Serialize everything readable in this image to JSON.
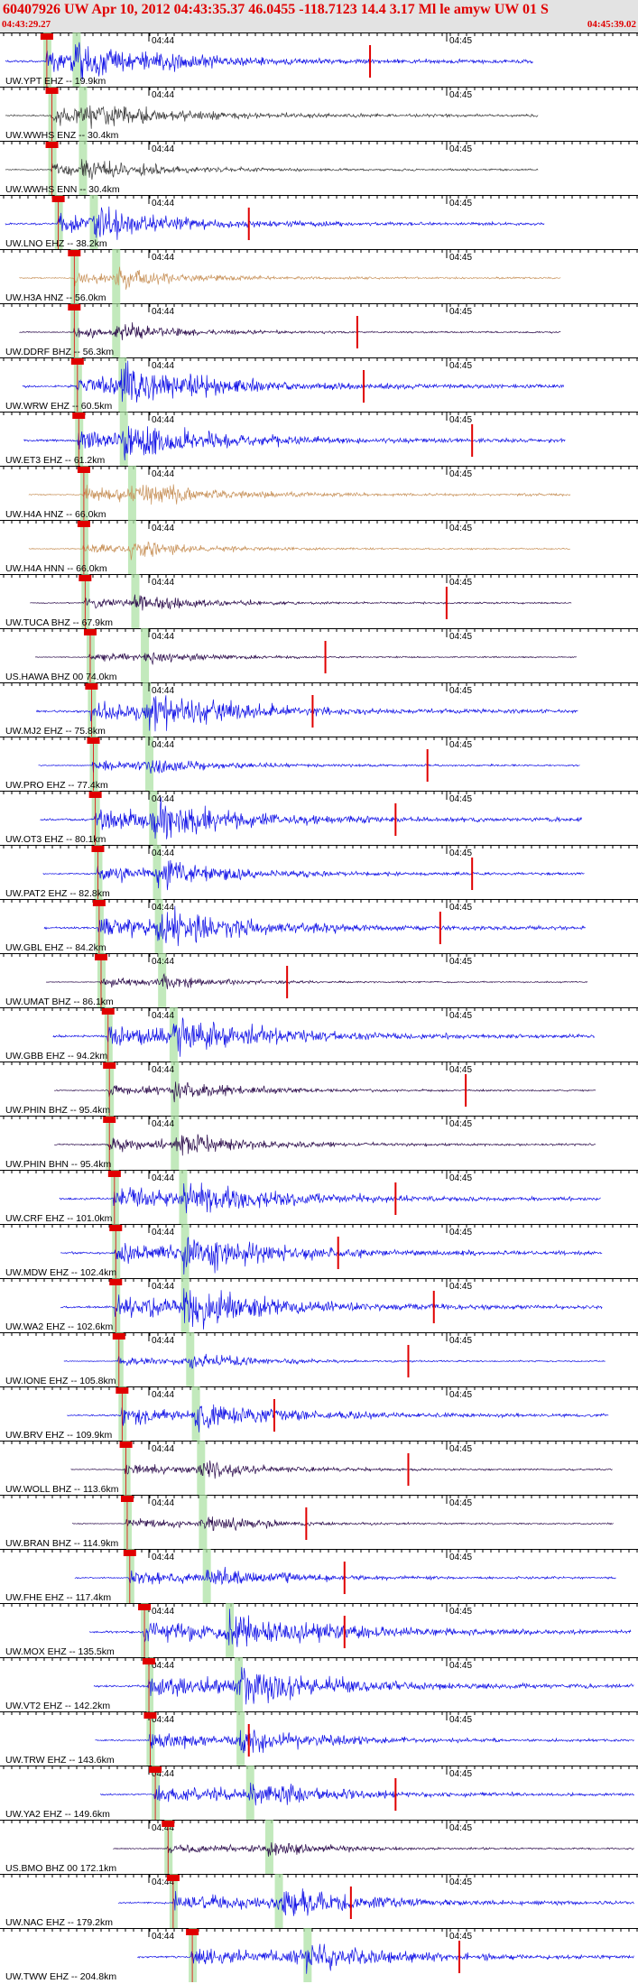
{
  "header": {
    "title": "60407926 UW Apr 10, 2012 04:43:35.37   46.0455 -118.7123 14.4 3.17 Ml le amyw UW 01   S",
    "start_time": "04:43:29.27",
    "end_time": "04:45:39.02"
  },
  "chart_data": {
    "type": "seismogram",
    "title": "60407926 UW Apr 10, 2012 04:43:35.37   46.0455 -118.7123 14.4 3.17 Ml le amyw UW 01   S",
    "x_range": [
      "04:43:29.27",
      "04:45:39.02"
    ],
    "x_tick_labels": [
      "04:44",
      "04:45"
    ],
    "colors": {
      "blue": "#1010e6",
      "gray": "#3a3a3a",
      "brown": "#c8925a",
      "purple": "#2a0a4a",
      "pick": "#e00000",
      "window": "#a8dfa0"
    },
    "traces": [
      {
        "label": "UW.YPT EHZ -- 19.9km",
        "color": "blue",
        "p": 0.072,
        "s": 0.118,
        "amp": 1.0,
        "red": 0.58
      },
      {
        "label": "UW.WWHS ENZ -- 30.4km",
        "color": "gray",
        "p": 0.08,
        "s": 0.128,
        "amp": 0.75,
        "red": null
      },
      {
        "label": "UW.WWHS ENN -- 30.4km",
        "color": "gray",
        "p": 0.08,
        "s": 0.128,
        "amp": 0.55,
        "red": null
      },
      {
        "label": "UW.LNO EHZ -- 38.2km",
        "color": "blue",
        "p": 0.09,
        "s": 0.145,
        "amp": 0.8,
        "red": 0.39
      },
      {
        "label": "UW.H3A HNZ -- 56.0km",
        "color": "brown",
        "p": 0.115,
        "s": 0.18,
        "amp": 0.5,
        "red": null
      },
      {
        "label": "UW.DDRF BHZ -- 56.3km",
        "color": "purple",
        "p": 0.115,
        "s": 0.18,
        "amp": 0.45,
        "red": 0.56
      },
      {
        "label": "UW.WRW EHZ -- 60.5km",
        "color": "blue",
        "p": 0.12,
        "s": 0.19,
        "amp": 1.0,
        "red": 0.57
      },
      {
        "label": "UW.ET3 EHZ -- 61.2km",
        "color": "blue",
        "p": 0.122,
        "s": 0.192,
        "amp": 1.0,
        "red": 0.74
      },
      {
        "label": "UW.H4A HNZ -- 66.0km",
        "color": "brown",
        "p": 0.13,
        "s": 0.205,
        "amp": 0.65,
        "red": null
      },
      {
        "label": "UW.H4A HNN -- 66.0km",
        "color": "brown",
        "p": 0.13,
        "s": 0.205,
        "amp": 0.45,
        "red": null
      },
      {
        "label": "UW.TUCA BHZ -- 67.9km",
        "color": "purple",
        "p": 0.132,
        "s": 0.21,
        "amp": 0.45,
        "red": 0.7
      },
      {
        "label": "US.HAWA BHZ 00 74.0km",
        "color": "purple",
        "p": 0.14,
        "s": 0.225,
        "amp": 0.35,
        "red": 0.51
      },
      {
        "label": "UW.MJ2 EHZ -- 75.8km",
        "color": "blue",
        "p": 0.142,
        "s": 0.228,
        "amp": 1.0,
        "red": 0.49
      },
      {
        "label": "UW.PRO EHZ -- 77.4km",
        "color": "blue",
        "p": 0.145,
        "s": 0.232,
        "amp": 0.5,
        "red": 0.67
      },
      {
        "label": "UW.OT3 EHZ -- 80.1km",
        "color": "blue",
        "p": 0.148,
        "s": 0.238,
        "amp": 1.0,
        "red": 0.62
      },
      {
        "label": "UW.PAT2 EHZ -- 82.8km",
        "color": "blue",
        "p": 0.152,
        "s": 0.244,
        "amp": 0.7,
        "red": 0.74
      },
      {
        "label": "UW.GBL EHZ -- 84.2km",
        "color": "blue",
        "p": 0.154,
        "s": 0.247,
        "amp": 1.0,
        "red": 0.69
      },
      {
        "label": "UW.UMAT BHZ -- 86.1km",
        "color": "purple",
        "p": 0.157,
        "s": 0.252,
        "amp": 0.35,
        "red": 0.45
      },
      {
        "label": "UW.GBB EHZ -- 94.2km",
        "color": "blue",
        "p": 0.168,
        "s": 0.27,
        "amp": 1.0,
        "red": null
      },
      {
        "label": "UW.PHIN BHZ -- 95.4km",
        "color": "purple",
        "p": 0.17,
        "s": 0.272,
        "amp": 0.5,
        "red": 0.73
      },
      {
        "label": "UW.PHIN BHN -- 95.4km",
        "color": "purple",
        "p": 0.17,
        "s": 0.272,
        "amp": 0.6,
        "red": null
      },
      {
        "label": "UW.CRF EHZ -- 101.0km",
        "color": "blue",
        "p": 0.178,
        "s": 0.285,
        "amp": 1.0,
        "red": 0.62
      },
      {
        "label": "UW.MDW EHZ -- 102.4km",
        "color": "blue",
        "p": 0.18,
        "s": 0.288,
        "amp": 1.0,
        "red": 0.53
      },
      {
        "label": "UW.WA2 EHZ -- 102.6km",
        "color": "blue",
        "p": 0.18,
        "s": 0.288,
        "amp": 1.0,
        "red": 0.68
      },
      {
        "label": "UW.IONE EHZ -- 105.8km",
        "color": "blue",
        "p": 0.185,
        "s": 0.296,
        "amp": 0.4,
        "red": 0.64
      },
      {
        "label": "UW.BRV EHZ -- 109.9km",
        "color": "blue",
        "p": 0.19,
        "s": 0.305,
        "amp": 0.8,
        "red": 0.43
      },
      {
        "label": "UW.WOLL BHZ -- 113.6km",
        "color": "purple",
        "p": 0.196,
        "s": 0.313,
        "amp": 0.45,
        "red": 0.64
      },
      {
        "label": "UW.BRAN BHZ -- 114.9km",
        "color": "purple",
        "p": 0.198,
        "s": 0.316,
        "amp": 0.4,
        "red": 0.48
      },
      {
        "label": "UW.FHE EHZ -- 117.4km",
        "color": "blue",
        "p": 0.202,
        "s": 0.322,
        "amp": 0.6,
        "red": 0.54
      },
      {
        "label": "UW.MOX EHZ -- 135.5km",
        "color": "blue",
        "p": 0.225,
        "s": 0.358,
        "amp": 1.0,
        "red": 0.54
      },
      {
        "label": "UW.VT2 EHZ -- 142.2km",
        "color": "blue",
        "p": 0.232,
        "s": 0.372,
        "amp": 1.0,
        "red": null
      },
      {
        "label": "UW.TRW EHZ -- 143.6km",
        "color": "blue",
        "p": 0.234,
        "s": 0.375,
        "amp": 0.7,
        "red": 0.39
      },
      {
        "label": "UW.YA2 EHZ -- 149.6km",
        "color": "blue",
        "p": 0.242,
        "s": 0.39,
        "amp": 0.7,
        "red": 0.62
      },
      {
        "label": "US.BMO BHZ 00 172.1km",
        "color": "purple",
        "p": 0.262,
        "s": 0.42,
        "amp": 0.4,
        "red": null
      },
      {
        "label": "UW.NAC EHZ -- 179.2km",
        "color": "blue",
        "p": 0.27,
        "s": 0.435,
        "amp": 0.8,
        "red": 0.55
      },
      {
        "label": "UW.TWW EHZ -- 204.8km",
        "color": "blue",
        "p": 0.3,
        "s": 0.48,
        "amp": 0.8,
        "red": 0.72
      }
    ]
  }
}
